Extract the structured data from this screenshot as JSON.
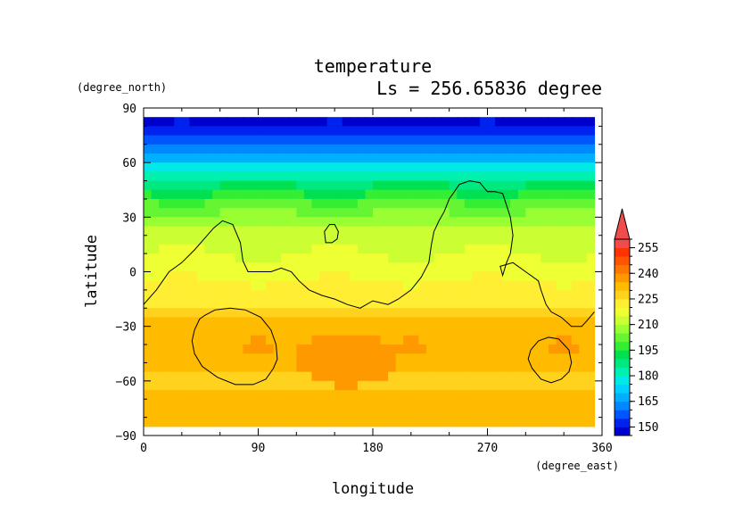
{
  "chart_data": {
    "type": "heatmap",
    "title": "temperature",
    "subtitle": "Ls = 256.65836 degree",
    "xlabel": "longitude",
    "ylabel": "latitude",
    "x_units": "(degree_east)",
    "y_units": "(degree_north)",
    "xlim": [
      0,
      360
    ],
    "ylim": [
      -90,
      90
    ],
    "data_extent": {
      "lon": [
        0,
        354
      ],
      "lat": [
        -85,
        85
      ]
    },
    "x_ticks": [
      0,
      90,
      180,
      270,
      360
    ],
    "y_ticks": [
      90,
      60,
      30,
      0,
      -30,
      -60,
      -90
    ],
    "x_tick_labels": [
      "0",
      "90",
      "180",
      "270",
      "360"
    ],
    "y_tick_labels": [
      "90",
      "60",
      "30",
      "0",
      "−30",
      "−60",
      "−90"
    ],
    "colorbar": {
      "levels": [
        145,
        150,
        155,
        160,
        165,
        170,
        175,
        180,
        185,
        190,
        195,
        200,
        205,
        210,
        215,
        220,
        225,
        230,
        235,
        240,
        245,
        250,
        255,
        260
      ],
      "colors": [
        "#0000cc",
        "#0022ee",
        "#0055ff",
        "#0088ff",
        "#00b0ff",
        "#00d0ff",
        "#00e8e8",
        "#00f0b0",
        "#00e880",
        "#00e050",
        "#33ee33",
        "#66f533",
        "#99ff33",
        "#ccff33",
        "#eeff33",
        "#ffee33",
        "#ffd21e",
        "#ffbb00",
        "#ff9900",
        "#ff7700",
        "#ff5500",
        "#ff3300",
        "#f04c4c"
      ],
      "extend": "max",
      "labels": [
        "150",
        "165",
        "180",
        "195",
        "210",
        "225",
        "240",
        "255"
      ]
    },
    "lat_rows": [
      85,
      80,
      75,
      70,
      65,
      60,
      55,
      50,
      45,
      40,
      35,
      30,
      25,
      20,
      15,
      10,
      5,
      0,
      -5,
      -10,
      -15,
      -20,
      -25,
      -30,
      -35,
      -40,
      -45,
      -50,
      -55,
      -60,
      -65,
      -70,
      -75,
      -80,
      -85
    ],
    "lat_profile": [
      148,
      150,
      153,
      158,
      164,
      172,
      180,
      187,
      193,
      198,
      203,
      207,
      211,
      213,
      214,
      215,
      216,
      218,
      220,
      222,
      223,
      225,
      228,
      233,
      234,
      234,
      234,
      233,
      230,
      227,
      230,
      232,
      232,
      232,
      232
    ],
    "warm_region": {
      "lon": [
        120,
        200
      ],
      "lat": [
        -63,
        -33
      ],
      "value": 239
    },
    "topography_contours": [
      {
        "lon": [
          0,
          10,
          20,
          30,
          40,
          50,
          55,
          62,
          70,
          76,
          78,
          82,
          90,
          100,
          108,
          116,
          122,
          130,
          140,
          150,
          160,
          170,
          180,
          192,
          200,
          210,
          218,
          224,
          226,
          228,
          232,
          236,
          240,
          248,
          256,
          264,
          270,
          276,
          282,
          288,
          290,
          288,
          285,
          282,
          280,
          290,
          300,
          310,
          312,
          316,
          320,
          328,
          336,
          344,
          348,
          354
        ],
        "lat": [
          -18,
          -10,
          0,
          5,
          12,
          20,
          24,
          28,
          26,
          16,
          6,
          0,
          0,
          0,
          2,
          0,
          -5,
          -10,
          -13,
          -15,
          -18,
          -20,
          -16,
          -18,
          -15,
          -10,
          -3,
          5,
          15,
          22,
          28,
          33,
          40,
          48,
          50,
          49,
          44,
          44,
          43,
          30,
          20,
          10,
          5,
          -2,
          3,
          5,
          0,
          -5,
          -10,
          -18,
          -22,
          -25,
          -30,
          -30,
          -27,
          -22
        ]
      },
      {
        "lon": [
          142,
          146,
          150,
          153,
          152,
          148,
          143,
          142
        ],
        "lat": [
          22,
          26,
          26,
          22,
          18,
          16,
          16,
          22
        ]
      },
      {
        "lon": [
          40,
          44,
          48,
          56,
          68,
          80,
          92,
          100,
          104,
          105,
          102,
          96,
          86,
          72,
          58,
          46,
          40,
          38,
          40
        ],
        "lat": [
          -32,
          -26,
          -24,
          -21,
          -20,
          -21,
          -25,
          -32,
          -40,
          -48,
          -53,
          -59,
          -62,
          -62,
          -58,
          -52,
          -45,
          -38,
          -32
        ]
      },
      {
        "lon": [
          304,
          310,
          318,
          326,
          334,
          336,
          334,
          328,
          320,
          312,
          305,
          302,
          304
        ],
        "lat": [
          -43,
          -38,
          -36,
          -37,
          -43,
          -50,
          -55,
          -59,
          -61,
          -59,
          -53,
          -48,
          -43
        ]
      }
    ]
  }
}
